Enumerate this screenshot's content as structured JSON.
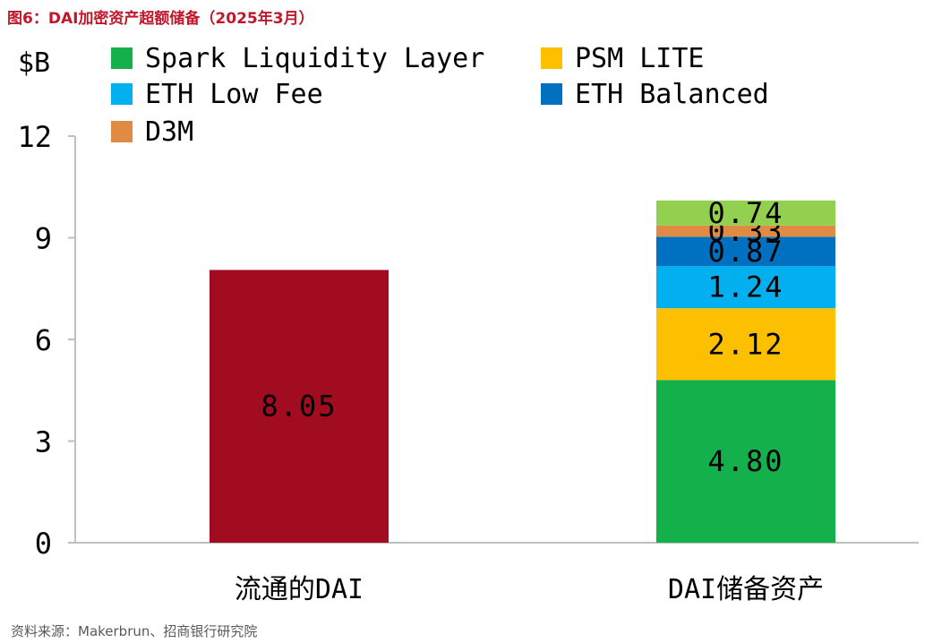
{
  "figure_title": "图6：DAI加密资产超额储备（2025年3月）",
  "source": "资料来源：Makerbrun、招商银行研究院",
  "chart_data": {
    "type": "bar",
    "stacked": true,
    "title": "",
    "ylabel": "$B",
    "xlabel": "",
    "ylim": [
      0,
      12
    ],
    "yticks": [
      0,
      3,
      6,
      9,
      12
    ],
    "yticklabels": [
      "0",
      "3",
      "6",
      "9",
      "12"
    ],
    "grid": false,
    "legend_position": "top",
    "categories": [
      "流通的DAI",
      "DAI储备资产"
    ],
    "series": [
      {
        "name": "流通的DAI",
        "values": [
          8.05,
          null
        ],
        "labels": [
          "8.05",
          null
        ],
        "color": "#a10c20",
        "in_legend": false
      },
      {
        "name": "Spark Liquidity Layer",
        "values": [
          null,
          4.8
        ],
        "labels": [
          null,
          "4.80"
        ],
        "color": "#14b04c",
        "in_legend": true
      },
      {
        "name": "PSM LITE",
        "values": [
          null,
          2.12
        ],
        "labels": [
          null,
          "2.12"
        ],
        "color": "#fdc000",
        "in_legend": true
      },
      {
        "name": "ETH Low Fee",
        "values": [
          null,
          1.24
        ],
        "labels": [
          null,
          "1.24"
        ],
        "color": "#02b0f0",
        "in_legend": true
      },
      {
        "name": "ETH Balanced",
        "values": [
          null,
          0.87
        ],
        "labels": [
          null,
          "0.87"
        ],
        "color": "#0070c0",
        "in_legend": true
      },
      {
        "name": "D3M",
        "values": [
          null,
          0.33
        ],
        "labels": [
          null,
          "0.33"
        ],
        "color": "#e08b43",
        "in_legend": true
      },
      {
        "name": "",
        "values": [
          null,
          0.74
        ],
        "labels": [
          null,
          "0.74"
        ],
        "color": "#93d050",
        "in_legend": false
      }
    ]
  }
}
